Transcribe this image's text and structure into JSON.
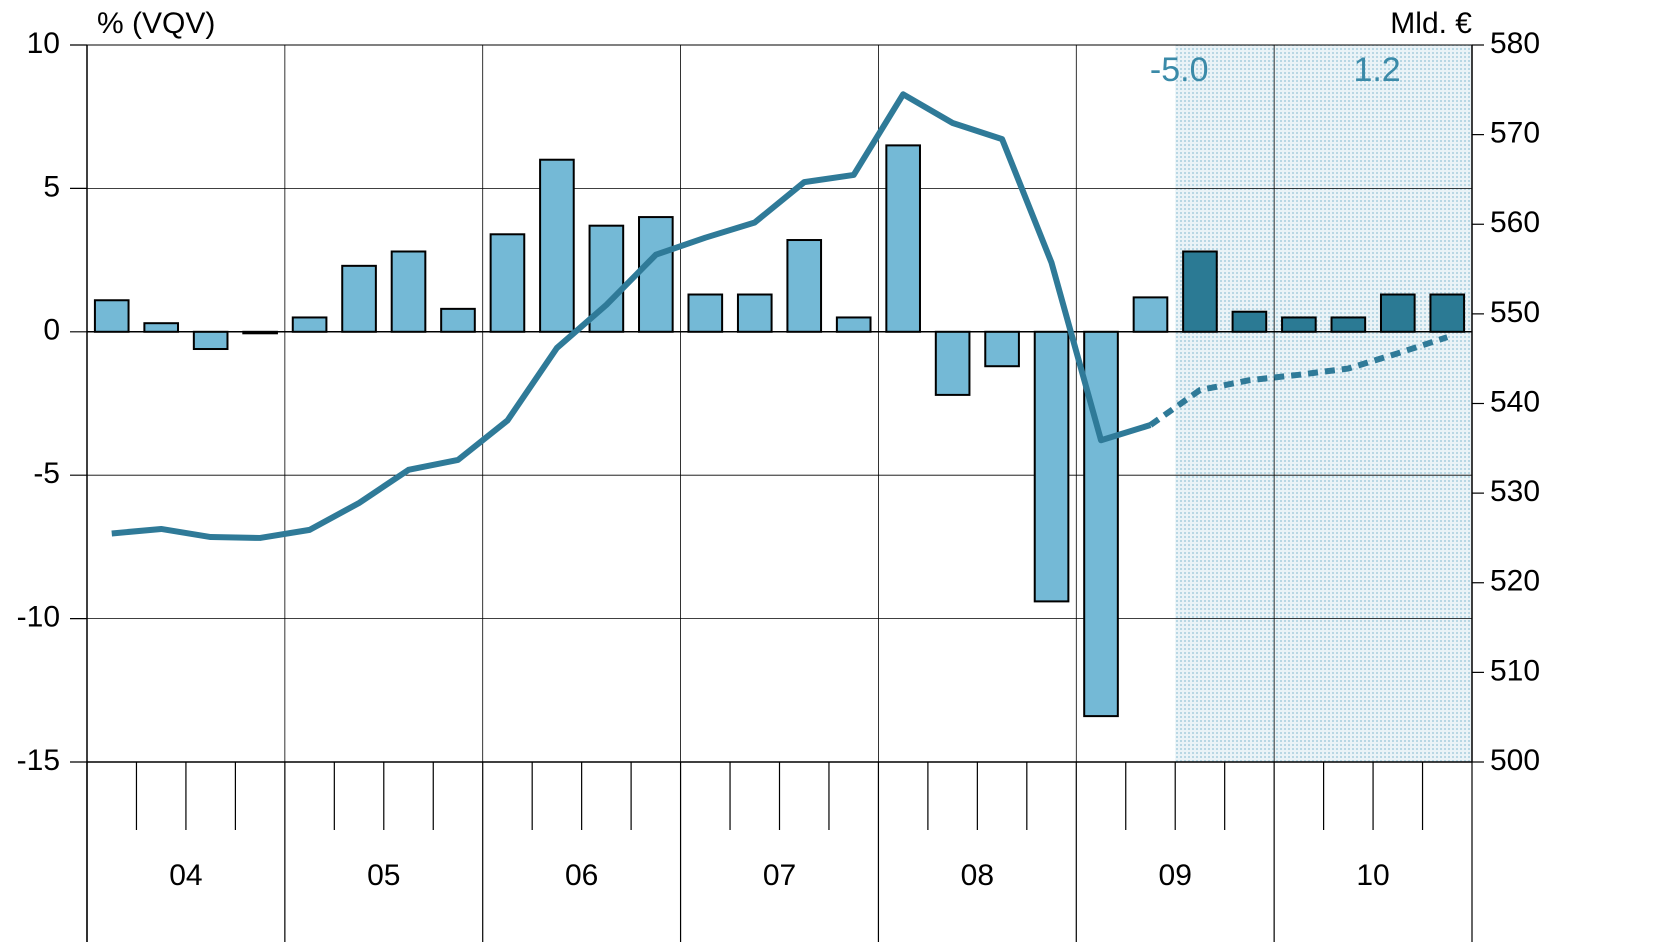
{
  "chart_data": {
    "type": "bar_line",
    "y_label": "% (VQV)",
    "y2_label": "Mld. €",
    "year_labels": [
      "04",
      "05",
      "06",
      "07",
      "08",
      "09",
      "10"
    ],
    "ylim": [
      -15,
      10
    ],
    "yticks": [
      10,
      5,
      0,
      -5,
      -10,
      -15
    ],
    "y2lim": [
      500,
      580
    ],
    "y2ticks": [
      580,
      570,
      560,
      550,
      540,
      530,
      520,
      510,
      500
    ],
    "grid": true,
    "bars": [
      {
        "color": "#74b9d6",
        "values": [
          1.1,
          0.3,
          -0.6,
          -0.05,
          0.5,
          2.3,
          2.8,
          0.8,
          3.4,
          6.0,
          3.7,
          4.0,
          1.3,
          1.3,
          3.2,
          0.5,
          6.5,
          -2.2,
          -1.2,
          -9.4,
          -13.4,
          1.2,
          null,
          null,
          null,
          null,
          null,
          null
        ]
      },
      {
        "color": "#2b7a94",
        "values": [
          null,
          null,
          null,
          null,
          null,
          null,
          null,
          null,
          null,
          null,
          null,
          null,
          null,
          null,
          null,
          null,
          null,
          null,
          null,
          null,
          null,
          null,
          2.8,
          0.7,
          0.5,
          0.5,
          1.3,
          1.3
        ]
      }
    ],
    "lines": [
      {
        "color": "#2f7a98",
        "axis": "y2",
        "dashed": false,
        "values": [
          525.5,
          526.0,
          525.1,
          525.0,
          525.9,
          528.9,
          532.6,
          533.7,
          538.1,
          546.2,
          551.0,
          556.6,
          558.5,
          560.2,
          564.7,
          565.5,
          574.5,
          571.3,
          569.5,
          555.7,
          535.9,
          537.6,
          null,
          null,
          null,
          null,
          null,
          null
        ]
      },
      {
        "color": "#2f7a98",
        "axis": "y2",
        "dashed": true,
        "values": [
          null,
          null,
          null,
          null,
          null,
          null,
          null,
          null,
          null,
          null,
          null,
          null,
          null,
          null,
          null,
          null,
          null,
          null,
          null,
          null,
          null,
          537.6,
          541.5,
          542.6,
          543.2,
          543.9,
          545.6,
          547.4
        ]
      }
    ],
    "annotations": [
      "-5.0",
      "1.2"
    ],
    "annotation_color": "#3a8aa8",
    "shade_color": "#b8d7e4"
  }
}
